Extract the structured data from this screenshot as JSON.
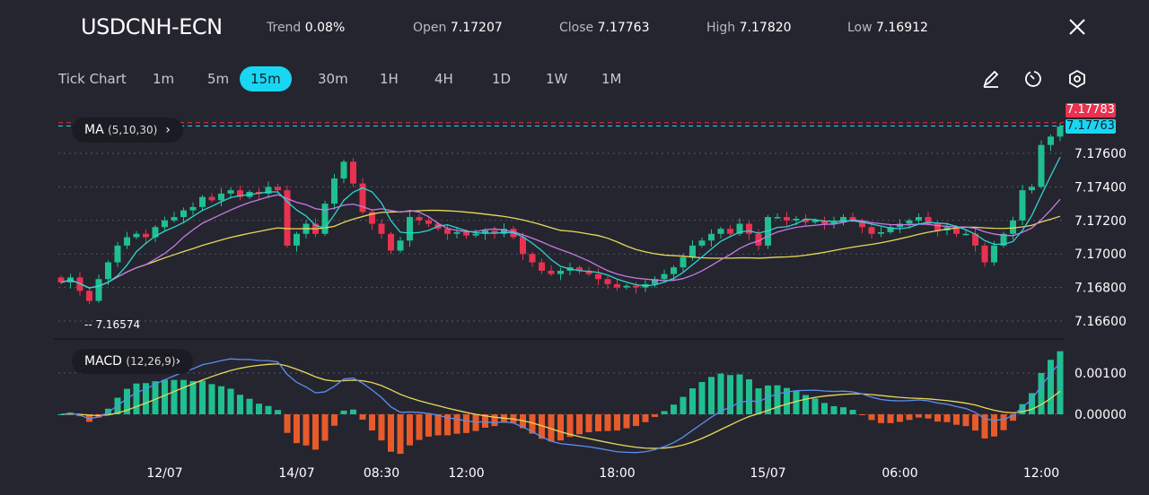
{
  "header": {
    "symbol": "USDCNH-ECN",
    "trend_label": "Trend",
    "trend": "0.08%",
    "open_label": "Open",
    "open": "7.17207",
    "close_label": "Close",
    "close": "7.17763",
    "high_label": "High",
    "high": "7.17820",
    "low_label": "Low",
    "low": "7.16912"
  },
  "timeframes": [
    {
      "label": "Tick Chart"
    },
    {
      "label": "1m"
    },
    {
      "label": "5m"
    },
    {
      "label": "15m",
      "active": true
    },
    {
      "label": "30m"
    },
    {
      "label": "1H"
    },
    {
      "label": "4H"
    },
    {
      "label": "1D"
    },
    {
      "label": "1W"
    },
    {
      "label": "1M"
    }
  ],
  "tools": [
    "pencil-icon",
    "clock-icon",
    "settings-icon"
  ],
  "indicators": {
    "ma_name": "MA",
    "ma_params": "(5,10,30)",
    "macd_name": "MACD",
    "macd_params": "(12,26,9)"
  },
  "price_tags": {
    "high_tag": "7.17783",
    "last_tag": "7.17763",
    "min_label": "-- 7.16574"
  },
  "colors": {
    "up": "#1fbf8f",
    "down": "#e8324f",
    "ma5": "#2fd4d0",
    "ma10": "#c77ae8",
    "ma30": "#e8d85a",
    "macd": "#5b8ef0",
    "signal": "#e8d85a",
    "hist_up": "#1fbf8f",
    "hist_down": "#e85a2a",
    "accent": "#19d6f3"
  },
  "chart_data": {
    "type": "candlestick",
    "y_ticks": [
      "7.17600",
      "7.17400",
      "7.17200",
      "7.17000",
      "7.16800",
      "7.16600"
    ],
    "y_tick_values": [
      7.176,
      7.174,
      7.172,
      7.17,
      7.168,
      7.166
    ],
    "macd_ticks": [
      "0.00100",
      "0.00000"
    ],
    "macd_tick_values": [
      0.001,
      0
    ],
    "x_ticks": [
      {
        "label": "12/07",
        "index": 11
      },
      {
        "label": "14/07",
        "index": 25
      },
      {
        "label": "08:30",
        "index": 34
      },
      {
        "label": "12:00",
        "index": 43
      },
      {
        "label": "18:00",
        "index": 59
      },
      {
        "label": "15/07",
        "index": 75
      },
      {
        "label": "06:00",
        "index": 89
      },
      {
        "label": "12:00",
        "index": 104
      }
    ],
    "closes": [
      7.1683,
      7.1686,
      7.1678,
      7.1672,
      7.1685,
      7.1695,
      7.1705,
      7.171,
      7.1712,
      7.171,
      7.1716,
      7.172,
      7.1722,
      7.1726,
      7.1728,
      7.1734,
      7.1732,
      7.1736,
      7.1738,
      7.1734,
      7.1737,
      7.1736,
      7.174,
      7.1738,
      7.1705,
      7.1712,
      7.1718,
      7.1712,
      7.173,
      7.1745,
      7.1755,
      7.1742,
      7.1725,
      7.1718,
      7.1712,
      7.1702,
      7.1708,
      7.1722,
      7.172,
      7.1718,
      7.1715,
      7.1712,
      7.1713,
      7.1711,
      7.1712,
      7.1714,
      7.1712,
      7.1715,
      7.171,
      7.17,
      7.1695,
      7.169,
      7.1688,
      7.169,
      7.1692,
      7.169,
      7.1688,
      7.1685,
      7.1682,
      7.168,
      7.1681,
      7.168,
      7.1682,
      7.1685,
      7.1688,
      7.1692,
      7.1698,
      7.1705,
      7.1708,
      7.1712,
      7.1715,
      7.1712,
      7.1718,
      7.1712,
      7.1705,
      7.1722,
      7.1722,
      7.172,
      7.1721,
      7.1719,
      7.172,
      7.1718,
      7.1719,
      7.1722,
      7.172,
      7.1716,
      7.1712,
      7.1713,
      7.1716,
      7.1718,
      7.172,
      7.1722,
      7.1718,
      7.1714,
      7.1716,
      7.1712,
      7.1712,
      7.1705,
      7.1695,
      7.1705,
      7.1712,
      7.172,
      7.1738,
      7.174,
      7.1765,
      7.177,
      7.1776
    ],
    "y_range": [
      7.165,
      7.1785
    ],
    "min_price": 7.16574,
    "last_price": 7.17763,
    "high_price": 7.17783
  }
}
